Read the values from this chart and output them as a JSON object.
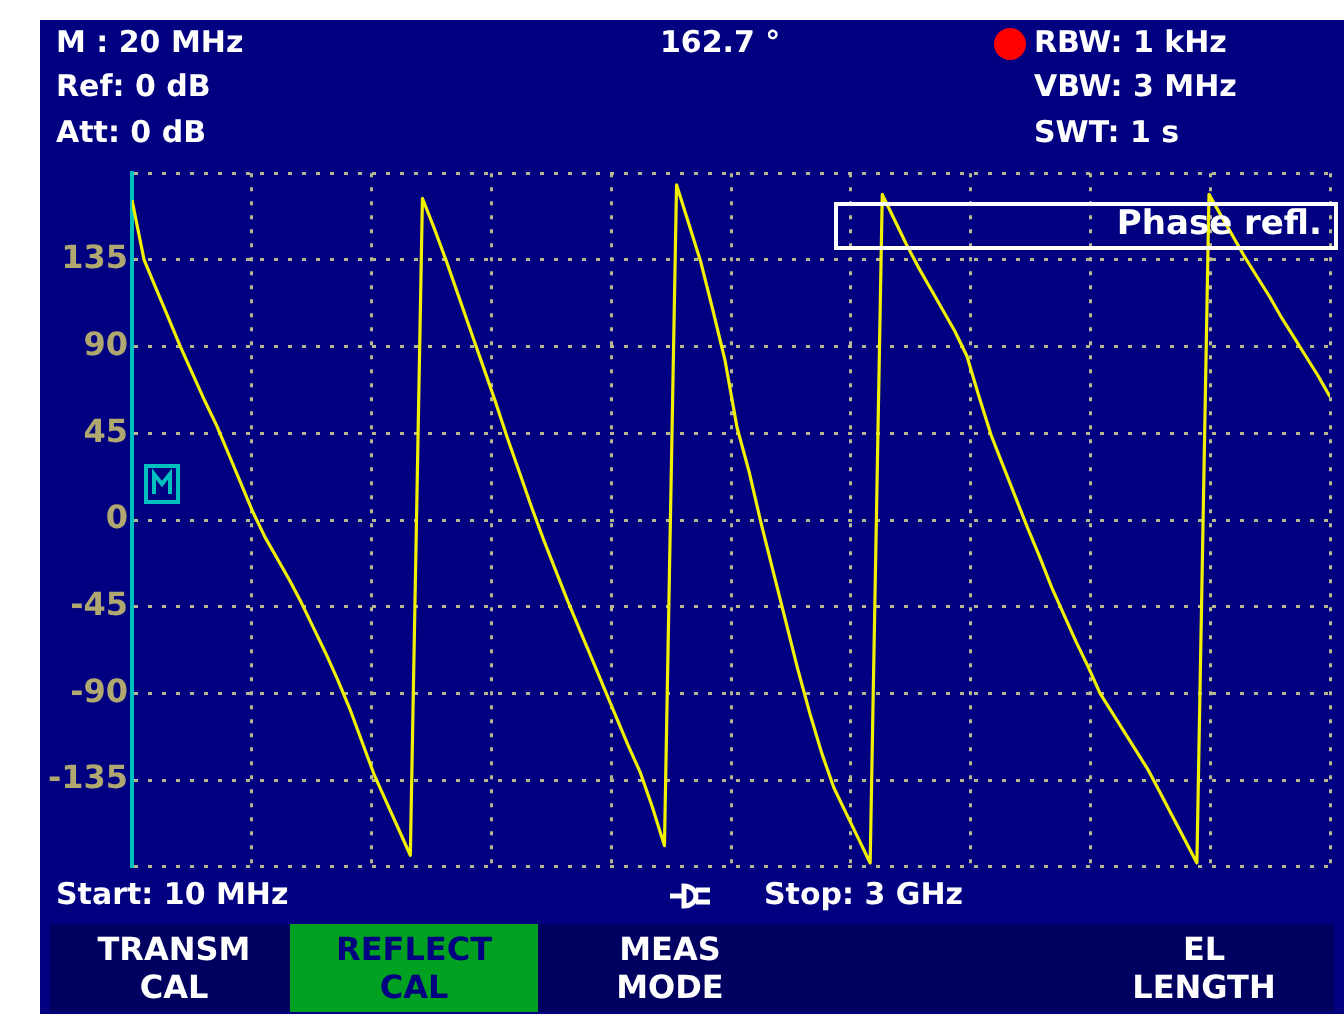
{
  "chart_data": {
    "type": "line",
    "title": "Phase refl.",
    "categories": [
      null,
      null,
      null,
      null,
      null,
      null,
      null,
      null,
      null,
      null,
      null,
      null,
      null,
      null,
      null,
      null,
      null,
      null,
      null,
      null,
      null,
      null,
      null,
      null,
      null,
      null,
      null,
      null,
      null,
      null,
      null,
      null,
      null,
      null,
      null,
      null,
      null,
      null,
      null,
      null,
      null,
      null,
      null,
      null,
      null,
      null,
      null,
      null,
      null,
      null,
      null,
      null,
      null,
      null,
      null,
      null,
      null,
      null,
      null,
      null,
      null,
      null,
      null,
      null,
      null,
      null,
      null,
      null,
      null,
      null,
      null,
      null,
      null,
      null,
      null,
      null,
      null,
      null,
      null,
      null,
      null,
      null,
      null,
      null,
      null,
      null,
      null,
      null,
      null,
      null,
      null,
      null,
      null,
      null,
      null,
      null,
      null,
      null,
      null,
      null
    ],
    "values": [
      166,
      135,
      120,
      105,
      90,
      76,
      62,
      49,
      34,
      19,
      4,
      -9,
      -20,
      -31,
      -43,
      -56,
      -69,
      -83,
      -98,
      -115,
      -132,
      -146,
      -160,
      -174,
      167,
      151,
      134,
      116,
      98,
      80,
      62,
      43,
      25,
      7,
      -10,
      -26,
      -42,
      -57,
      -72,
      -87,
      -102,
      -117,
      -131,
      -149,
      -169,
      174,
      154,
      134,
      109,
      83,
      48,
      25,
      -2,
      -27,
      -52,
      -77,
      -100,
      -121,
      -139,
      -152,
      -165,
      -178,
      169,
      156,
      143,
      131,
      120,
      109,
      98,
      85,
      64,
      44,
      28,
      12,
      -4,
      -19,
      -35,
      -49,
      -63,
      -76,
      -90,
      -100,
      -110,
      -120,
      -130,
      -142,
      -154,
      -166,
      -178,
      169,
      158,
      147,
      136,
      126,
      116,
      105,
      95,
      85,
      75,
      64
    ],
    "color": "#f0f000",
    "ylim": [
      -180,
      180
    ],
    "yticks": [
      {
        "value": -180,
        "label": null
      },
      -135,
      -90,
      -45,
      0,
      45,
      90,
      135,
      {
        "value": 180,
        "label": null
      }
    ],
    "grid": true,
    "marker": "none",
    "tick_labels": "y",
    "annotations": [
      "M : 20 MHz",
      "162.7 °",
      "Ref: 0 dB",
      "Att: 0 dB",
      "RBW: 1 kHz",
      "VBW: 3 MHz",
      "SWT: 1 s",
      "Start: 10 MHz",
      "Stop: 3 GHz",
      "TRANSM CAL",
      "REFLECT CAL",
      "MEAS MODE",
      "EL LENGTH"
    ]
  }
}
